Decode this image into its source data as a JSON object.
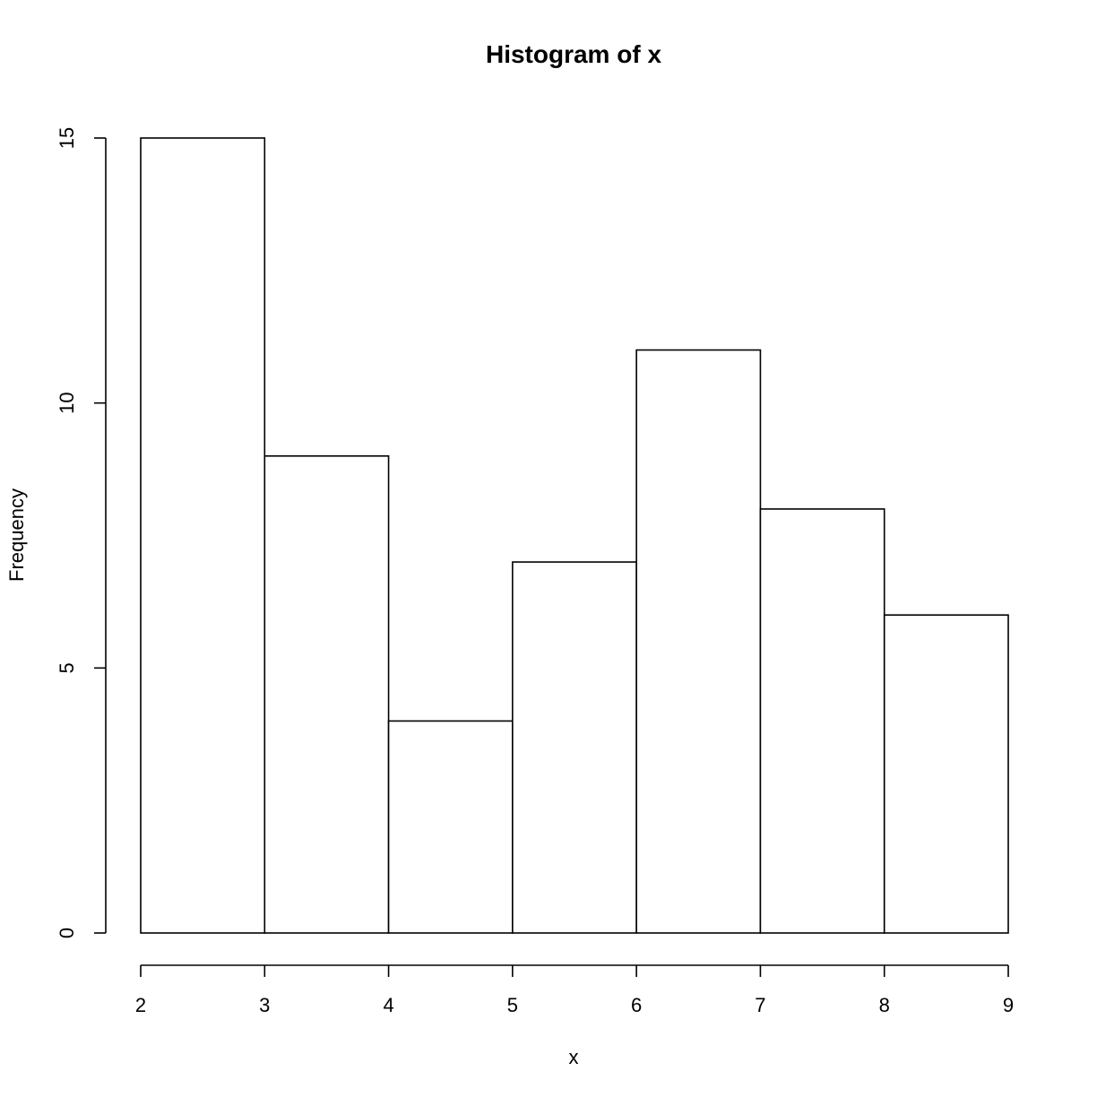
{
  "chart_data": {
    "type": "bar",
    "title": "Histogram of x",
    "xlabel": "x",
    "ylabel": "Frequency",
    "breaks": [
      2,
      3,
      4,
      5,
      6,
      7,
      8,
      9
    ],
    "counts": [
      15,
      9,
      4,
      7,
      11,
      8,
      6
    ],
    "xlim": [
      2,
      9
    ],
    "ylim": [
      0,
      15
    ],
    "x_ticks": [
      "2",
      "3",
      "4",
      "5",
      "6",
      "7",
      "8",
      "9"
    ],
    "y_ticks": [
      "0",
      "5",
      "10",
      "15"
    ],
    "grid": false,
    "legend": "none",
    "bar_fill": "#ffffff",
    "bar_stroke": "#000000"
  }
}
